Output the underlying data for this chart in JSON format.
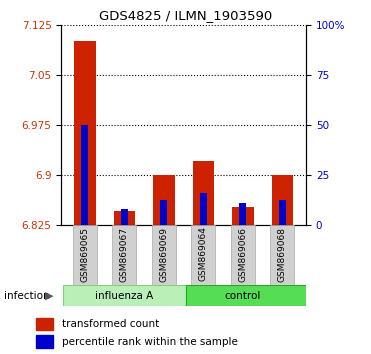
{
  "title": "GDS4825 / ILMN_1903590",
  "samples": [
    "GSM869065",
    "GSM869067",
    "GSM869069",
    "GSM869064",
    "GSM869066",
    "GSM869068"
  ],
  "red_values": [
    7.1,
    6.845,
    6.9,
    6.92,
    6.852,
    6.9
  ],
  "blue_values": [
    6.975,
    6.848,
    6.862,
    6.872,
    6.857,
    6.862
  ],
  "y_min": 6.825,
  "y_max": 7.125,
  "y_ticks": [
    6.825,
    6.9,
    6.975,
    7.05,
    7.125
  ],
  "y_tick_labels": [
    "6.825",
    "6.9",
    "6.975",
    "7.05",
    "7.125"
  ],
  "right_y_ticks": [
    0,
    25,
    50,
    75,
    100
  ],
  "right_y_labels": [
    "0",
    "25",
    "50",
    "75",
    "100%"
  ],
  "left_color": "#cc3300",
  "right_color": "#0000cc",
  "bar_width": 0.55,
  "blue_bar_width": 0.18,
  "legend_red": "transformed count",
  "legend_blue": "percentile rank within the sample",
  "infection_label": "infection",
  "influenza_color": "#b8f0b8",
  "control_color": "#55dd55",
  "influenza_edge": "#88cc88",
  "control_edge": "#22aa22",
  "gray_label_color": "#d0d0d0",
  "gray_label_edge": "#aaaaaa"
}
